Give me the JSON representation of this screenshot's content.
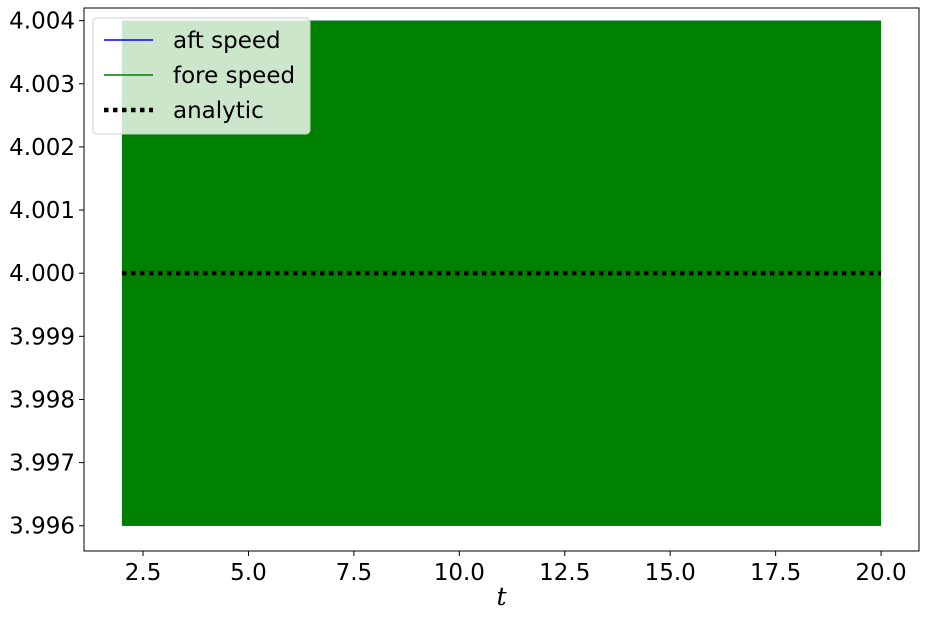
{
  "chart_data": {
    "type": "line",
    "title": "",
    "xlabel": "t",
    "ylabel": "",
    "xlim": [
      1.1,
      20.9
    ],
    "ylim": [
      3.9956,
      4.0042
    ],
    "x_ticks": [
      2.5,
      5.0,
      7.5,
      10.0,
      12.5,
      15.0,
      17.5,
      20.0
    ],
    "x_tick_labels": [
      "2.5",
      "5.0",
      "7.5",
      "10.0",
      "12.5",
      "15.0",
      "17.5",
      "20.0"
    ],
    "y_ticks": [
      3.996,
      3.997,
      3.998,
      3.999,
      4.0,
      4.001,
      4.002,
      4.003,
      4.004
    ],
    "y_tick_labels": [
      "3.996",
      "3.997",
      "3.998",
      "3.999",
      "4.000",
      "4.001",
      "4.002",
      "4.003",
      "4.004"
    ],
    "legend_placement": "upper-left",
    "series": [
      {
        "name": "aft speed",
        "color": "#0000ff",
        "style": "solid",
        "x_range": [
          2.0,
          20.0
        ],
        "oscillation": {
          "min": 3.996,
          "max": 4.004
        }
      },
      {
        "name": "fore speed",
        "color": "#008000",
        "style": "solid",
        "x_range": [
          2.0,
          20.0
        ],
        "oscillation": {
          "min": 3.996,
          "max": 4.004
        }
      },
      {
        "name": "analytic",
        "color": "#000000",
        "style": "dotted",
        "x": [
          2.0,
          20.0
        ],
        "y": [
          4.0,
          4.0
        ]
      }
    ]
  }
}
